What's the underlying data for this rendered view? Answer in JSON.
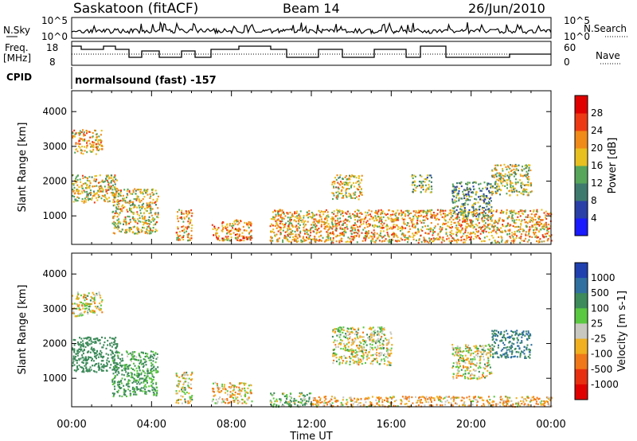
{
  "header": {
    "station": "Saskatoon (fitACF)",
    "beam": "Beam 14",
    "date": "26/Jun/2010"
  },
  "aux": {
    "nsky_label": "N.Sky",
    "nsearch_label": "N.Search",
    "freq_label_1": "Freq.",
    "freq_label_2": "[MHz]",
    "nave_label": "Nave",
    "cpid_label": "CPID",
    "cpid_text": "normalsound (fast) -157",
    "noise_left_ticks": [
      "10^5",
      "10^0"
    ],
    "noise_right_ticks": [
      "10^5",
      "10^0"
    ],
    "freq_left_ticks": [
      "18",
      "8"
    ],
    "nave_right_ticks": [
      "60",
      "0"
    ]
  },
  "chart_data": [
    {
      "type": "heatmap",
      "title": "Power",
      "ylabel": "Slant Range [km]",
      "xlabel": "Time UT",
      "xlim": [
        0,
        24
      ],
      "ylim": [
        180,
        4600
      ],
      "x_tick_labels": [
        "00:00",
        "04:00",
        "08:00",
        "12:00",
        "16:00",
        "20:00",
        "00:00"
      ],
      "y_ticks": [
        1000,
        2000,
        3000,
        4000
      ],
      "colorbar": {
        "label": "Power [dB]",
        "ticks": [
          4,
          8,
          12,
          16,
          20,
          24,
          28
        ],
        "colors": [
          "#1a1aff",
          "#2a3fa8",
          "#3f7a6e",
          "#57a65a",
          "#e8c020",
          "#f08a18",
          "#ee3a14",
          "#e00000"
        ]
      },
      "echo_regions": [
        {
          "t": [
            0.0,
            1.5
          ],
          "r": [
            2800,
            3500
          ],
          "level": 20
        },
        {
          "t": [
            0.0,
            2.3
          ],
          "r": [
            1400,
            2200
          ],
          "level": 18
        },
        {
          "t": [
            2.0,
            4.3
          ],
          "r": [
            500,
            1800
          ],
          "level": 18
        },
        {
          "t": [
            5.2,
            6.0
          ],
          "r": [
            300,
            1200
          ],
          "level": 20
        },
        {
          "t": [
            7.0,
            9.0
          ],
          "r": [
            300,
            900
          ],
          "level": 22
        },
        {
          "t": [
            9.9,
            24.0
          ],
          "r": [
            250,
            1200
          ],
          "level": 20
        },
        {
          "t": [
            13.0,
            14.5
          ],
          "r": [
            1500,
            2200
          ],
          "level": 18
        },
        {
          "t": [
            17.0,
            18.0
          ],
          "r": [
            1700,
            2200
          ],
          "level": 14
        },
        {
          "t": [
            19.0,
            21.0
          ],
          "r": [
            1000,
            2000
          ],
          "level": 12
        },
        {
          "t": [
            21.0,
            23.0
          ],
          "r": [
            1600,
            2500
          ],
          "level": 16
        }
      ]
    },
    {
      "type": "heatmap",
      "title": "Velocity",
      "ylabel": "Slant Range [km]",
      "xlabel": "Time UT",
      "xlim": [
        0,
        24
      ],
      "ylim": [
        180,
        4600
      ],
      "x_tick_labels": [
        "00:00",
        "04:00",
        "08:00",
        "12:00",
        "16:00",
        "20:00",
        "00:00"
      ],
      "y_ticks": [
        1000,
        2000,
        3000,
        4000
      ],
      "colorbar": {
        "label": "Velocity [m s-1]",
        "ticks": [
          "1000",
          "500",
          "100",
          "25",
          "-25",
          "-100",
          "-500",
          "-1000"
        ],
        "colors": [
          "#2040b0",
          "#3070a0",
          "#3d8a5a",
          "#5ac840",
          "#c8c8c0",
          "#f0b020",
          "#f07818",
          "#e83010",
          "#e00000"
        ]
      },
      "echo_regions": [
        {
          "t": [
            0.0,
            1.5
          ],
          "r": [
            2800,
            3500
          ],
          "level": 0
        },
        {
          "t": [
            0.0,
            2.3
          ],
          "r": [
            1200,
            2200
          ],
          "level": 300
        },
        {
          "t": [
            2.0,
            4.3
          ],
          "r": [
            500,
            1800
          ],
          "level": 150
        },
        {
          "t": [
            5.2,
            6.0
          ],
          "r": [
            300,
            1200
          ],
          "level": 0
        },
        {
          "t": [
            7.0,
            9.0
          ],
          "r": [
            300,
            900
          ],
          "level": -50
        },
        {
          "t": [
            9.9,
            12.0
          ],
          "r": [
            200,
            600
          ],
          "level": 80
        },
        {
          "t": [
            12.0,
            24.0
          ],
          "r": [
            200,
            500
          ],
          "level": -80
        },
        {
          "t": [
            13.0,
            16.0
          ],
          "r": [
            1400,
            2500
          ],
          "level": 0
        },
        {
          "t": [
            19.0,
            21.0
          ],
          "r": [
            1000,
            2000
          ],
          "level": 0
        },
        {
          "t": [
            21.0,
            23.0
          ],
          "r": [
            1600,
            2400
          ],
          "level": 500
        }
      ]
    }
  ]
}
